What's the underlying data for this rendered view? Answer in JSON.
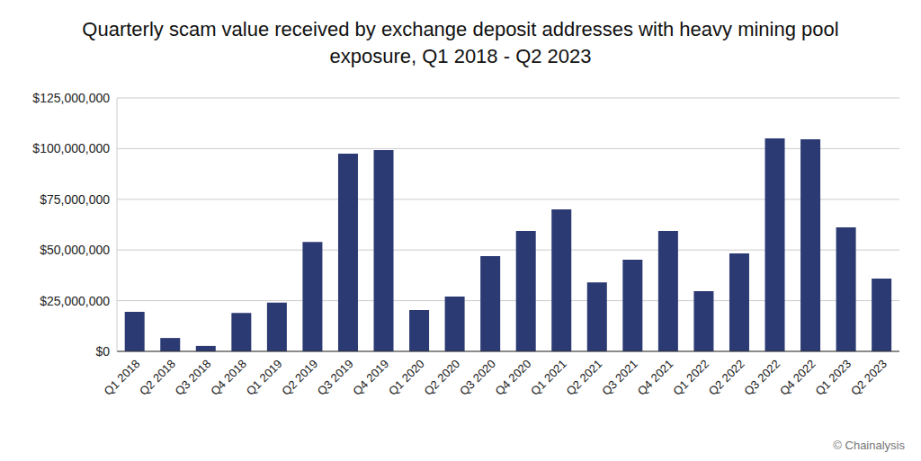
{
  "chart_data": {
    "type": "bar",
    "title": "Quarterly scam value received by exchange deposit addresses with heavy mining pool exposure, Q1 2018 - Q2 2023",
    "categories": [
      "Q1 2018",
      "Q2 2018",
      "Q3 2018",
      "Q4 2018",
      "Q1 2019",
      "Q2 2019",
      "Q3 2019",
      "Q4 2019",
      "Q1 2020",
      "Q2 2020",
      "Q3 2020",
      "Q4 2020",
      "Q1 2021",
      "Q2 2021",
      "Q3 2021",
      "Q4 2021",
      "Q1 2022",
      "Q2 2022",
      "Q3 2022",
      "Q4 2022",
      "Q1 2023",
      "Q2 2023"
    ],
    "values": [
      19500000,
      6600000,
      2700000,
      19000000,
      24000000,
      54000000,
      97500000,
      99300000,
      20400000,
      27000000,
      47000000,
      59400000,
      70000000,
      34000000,
      45200000,
      59400000,
      29700000,
      48300000,
      105000000,
      104600000,
      61200000,
      35900000
    ],
    "color": "#2b3a73",
    "ylim": [
      0,
      125000000
    ],
    "yticks": [
      {
        "value": 0,
        "label": "$0"
      },
      {
        "value": 25000000,
        "label": "$25,000,000"
      },
      {
        "value": 50000000,
        "label": "$50,000,000"
      },
      {
        "value": 75000000,
        "label": "$75,000,000"
      },
      {
        "value": 100000000,
        "label": "$100,000,000"
      },
      {
        "value": 125000000,
        "label": "$125,000,000"
      }
    ],
    "grid": true,
    "annotations": [
      "© Chainalysis"
    ]
  }
}
